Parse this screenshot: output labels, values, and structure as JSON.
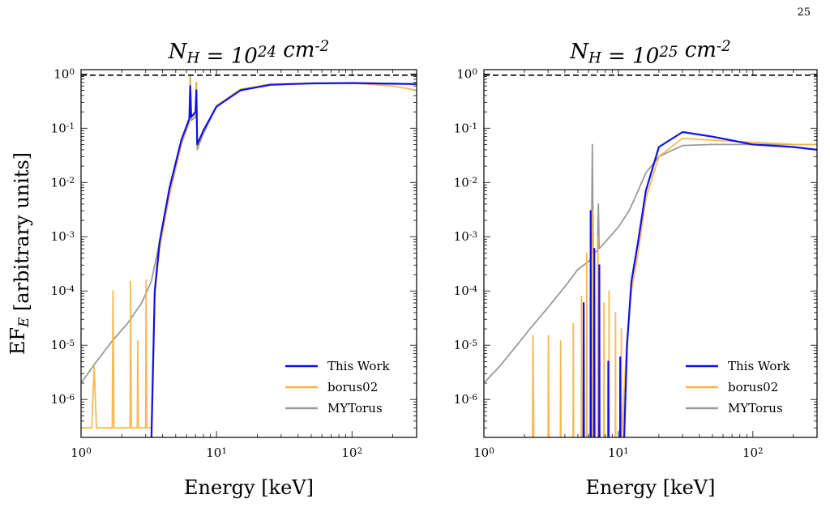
{
  "page_number": "25",
  "colors": {
    "this_work": "#1010e8",
    "borus02": "#f5b340",
    "mytorus": "#9a9a9a",
    "reference": "#000000"
  },
  "chart_data": [
    {
      "type": "line",
      "title": "N_H = 10^24 cm^-2",
      "xlabel": "Energy [keV]",
      "ylabel": "EF_E [arbitrary units]",
      "xscale": "log",
      "yscale": "log",
      "xlim": [
        1,
        300
      ],
      "ylim": [
        2e-07,
        1.2
      ],
      "x_ticks": [
        "10^0",
        "10^1",
        "10^2"
      ],
      "y_ticks": [
        "10^0",
        "10^-1",
        "10^-2",
        "10^-3",
        "10^-4",
        "10^-5",
        "10^-6"
      ],
      "reference_line_y": 0.95,
      "legend": {
        "placement": "lower right",
        "entries": [
          "This Work",
          "borus02",
          "MYTorus"
        ]
      },
      "series": [
        {
          "name": "MYTorus",
          "x": [
            1.0,
            1.3,
            1.7,
            2.2,
            2.8,
            3.3,
            3.8,
            4.5,
            5.5,
            6.3,
            6.4,
            6.5,
            7.0,
            7.1,
            7.2,
            8.0,
            10,
            15,
            25,
            50,
            100,
            200,
            300
          ],
          "y": [
            2e-06,
            5e-06,
            1.2e-05,
            2.5e-05,
            6e-05,
            0.00015,
            0.0008,
            0.006,
            0.05,
            0.13,
            0.9,
            0.14,
            0.16,
            0.7,
            0.04,
            0.08,
            0.25,
            0.5,
            0.63,
            0.67,
            0.68,
            0.67,
            0.65
          ]
        },
        {
          "name": "borus02",
          "x": [
            1.0,
            1.2,
            1.25,
            1.3,
            1.7,
            1.72,
            1.75,
            2.3,
            2.32,
            2.35,
            2.6,
            2.62,
            2.65,
            3.0,
            3.02,
            3.05,
            3.3,
            3.5,
            3.8,
            4.5,
            5.5,
            6.3,
            6.4,
            6.5,
            7.0,
            7.1,
            7.2,
            8.0,
            10,
            15,
            25,
            50,
            100,
            200,
            300
          ],
          "y": [
            3e-07,
            3e-07,
            4e-06,
            3e-07,
            3e-07,
            0.0001,
            3e-07,
            3e-07,
            0.00015,
            3e-07,
            3e-07,
            1.2e-05,
            3e-07,
            3e-07,
            0.00016,
            3e-07,
            3e-07,
            8e-05,
            0.0006,
            0.006,
            0.05,
            0.14,
            0.85,
            0.16,
            0.18,
            0.7,
            0.045,
            0.09,
            0.26,
            0.52,
            0.65,
            0.68,
            0.68,
            0.6,
            0.5
          ]
        },
        {
          "name": "This Work",
          "x": [
            3.3,
            3.5,
            3.8,
            4.5,
            5.5,
            6.3,
            6.4,
            6.5,
            7.0,
            7.1,
            7.2,
            8.0,
            10,
            15,
            25,
            50,
            100,
            200,
            300
          ],
          "y": [
            1.5e-07,
            0.0001,
            0.0008,
            0.008,
            0.06,
            0.15,
            0.6,
            0.16,
            0.2,
            0.5,
            0.05,
            0.09,
            0.25,
            0.5,
            0.63,
            0.67,
            0.68,
            0.66,
            0.65
          ]
        }
      ]
    },
    {
      "type": "line",
      "title": "N_H = 10^25 cm^-2",
      "xlabel": "Energy [keV]",
      "ylabel": "",
      "xscale": "log",
      "yscale": "log",
      "xlim": [
        1,
        300
      ],
      "ylim": [
        2e-07,
        1.2
      ],
      "x_ticks": [
        "10^0",
        "10^1",
        "10^2"
      ],
      "y_ticks": [
        "10^0",
        "10^-1",
        "10^-2",
        "10^-3",
        "10^-4",
        "10^-5",
        "10^-6"
      ],
      "reference_line_y": 0.95,
      "legend": {
        "placement": "lower right",
        "entries": [
          "This Work",
          "borus02",
          "MYTorus"
        ]
      },
      "series": [
        {
          "name": "MYTorus",
          "x": [
            1.0,
            1.3,
            1.7,
            2.2,
            3.0,
            4.0,
            5.0,
            6.0,
            6.3,
            6.4,
            6.5,
            7.0,
            7.1,
            7.2,
            8.0,
            10,
            12,
            14,
            16,
            20,
            30,
            50,
            100,
            200,
            300
          ],
          "y": [
            2e-06,
            4e-06,
            9e-06,
            2e-05,
            5e-05,
            0.00012,
            0.00025,
            0.00035,
            0.0004,
            0.05,
            0.0005,
            0.00055,
            0.004,
            0.0006,
            0.0008,
            0.0015,
            0.003,
            0.007,
            0.015,
            0.03,
            0.048,
            0.05,
            0.05,
            0.05,
            0.05
          ]
        },
        {
          "name": "borus02",
          "x": [
            2.3,
            2.32,
            2.35,
            3.0,
            3.02,
            3.05,
            3.7,
            3.72,
            3.75,
            4.6,
            4.62,
            4.65,
            5.3,
            5.32,
            5.35,
            5.8,
            5.82,
            5.85,
            6.4,
            6.42,
            6.45,
            7.0,
            7.05,
            7.1,
            7.8,
            7.82,
            7.85,
            8.5,
            8.52,
            8.55,
            9.5,
            9.52,
            9.55,
            10.5,
            10.52,
            10.55,
            11.5,
            12.5,
            14,
            16,
            20,
            30,
            50,
            100,
            200,
            300
          ],
          "y": [
            1.5e-07,
            1.5e-05,
            1.5e-07,
            1.5e-07,
            1.5e-05,
            1.5e-07,
            1.5e-07,
            1.2e-05,
            1.5e-07,
            1.5e-07,
            2.5e-05,
            1.5e-07,
            1.5e-07,
            8e-05,
            1.5e-07,
            1.5e-07,
            0.0005,
            1.5e-07,
            1.5e-07,
            0.003,
            1.5e-07,
            1.5e-07,
            0.001,
            1.5e-07,
            1.5e-07,
            6e-05,
            1.5e-07,
            1.5e-07,
            0.0001,
            1.5e-07,
            1.5e-07,
            4e-05,
            1.5e-07,
            1.5e-07,
            2e-05,
            1.5e-07,
            1e-05,
            0.0001,
            0.0005,
            0.005,
            0.03,
            0.065,
            0.06,
            0.055,
            0.05,
            0.05
          ]
        },
        {
          "name": "This Work",
          "x": [
            5.5,
            5.52,
            5.55,
            6.2,
            6.22,
            6.25,
            6.6,
            6.62,
            6.65,
            7.2,
            7.22,
            7.25,
            8.4,
            8.42,
            8.45,
            10.3,
            10.32,
            10.35,
            11.0,
            11.6,
            12.5,
            14,
            16,
            20,
            30,
            50,
            100,
            200,
            300
          ],
          "y": [
            1.5e-07,
            6e-05,
            1.5e-07,
            1.5e-07,
            0.003,
            1.5e-07,
            1.5e-07,
            0.0006,
            1.5e-07,
            1.5e-07,
            0.0003,
            1.5e-07,
            1.5e-07,
            5e-06,
            1.5e-07,
            1.5e-07,
            6e-06,
            1.5e-07,
            1.5e-07,
            1e-05,
            0.00015,
            0.0008,
            0.007,
            0.045,
            0.085,
            0.07,
            0.05,
            0.045,
            0.04
          ]
        }
      ]
    }
  ]
}
